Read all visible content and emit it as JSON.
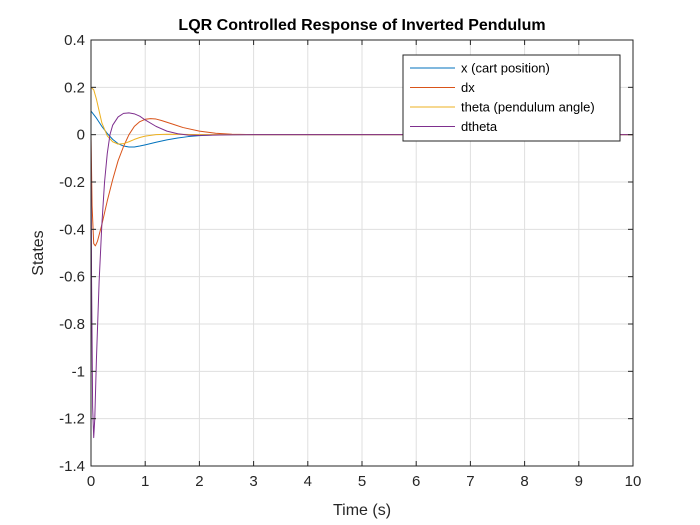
{
  "chart_data": {
    "type": "line",
    "title": "LQR Controlled Response of Inverted Pendulum",
    "xlabel": "Time (s)",
    "ylabel": "States",
    "xlim": [
      0,
      10
    ],
    "ylim": [
      -1.4,
      0.4
    ],
    "xticks": [
      0,
      1,
      2,
      3,
      4,
      5,
      6,
      7,
      8,
      9,
      10
    ],
    "yticks": [
      0.4,
      0.2,
      0,
      -0.2,
      -0.4,
      -0.6,
      -0.8,
      -1,
      -1.2,
      -1.4
    ],
    "grid": true,
    "legend_position": "top-right",
    "series": [
      {
        "name": "x (cart position)",
        "color": "#0072BD",
        "x": [
          0,
          0.05,
          0.1,
          0.2,
          0.3,
          0.4,
          0.5,
          0.6,
          0.7,
          0.8,
          0.9,
          1.0,
          1.2,
          1.4,
          1.6,
          1.8,
          2.0,
          2.3,
          2.6,
          3.0,
          4.0,
          10.0
        ],
        "y": [
          0.1,
          0.085,
          0.07,
          0.035,
          0.005,
          -0.02,
          -0.038,
          -0.048,
          -0.052,
          -0.052,
          -0.048,
          -0.043,
          -0.032,
          -0.022,
          -0.014,
          -0.008,
          -0.004,
          -0.001,
          0,
          0,
          0,
          0
        ]
      },
      {
        "name": "dx",
        "color": "#D95319",
        "x": [
          0,
          0.02,
          0.05,
          0.08,
          0.12,
          0.2,
          0.3,
          0.4,
          0.5,
          0.6,
          0.7,
          0.8,
          0.9,
          1.0,
          1.1,
          1.2,
          1.3,
          1.5,
          1.7,
          2.0,
          2.3,
          2.6,
          3.0,
          4.0,
          10.0
        ],
        "y": [
          0,
          -0.3,
          -0.46,
          -0.47,
          -0.45,
          -0.38,
          -0.28,
          -0.19,
          -0.11,
          -0.05,
          0.0,
          0.035,
          0.055,
          0.065,
          0.068,
          0.066,
          0.06,
          0.045,
          0.03,
          0.015,
          0.006,
          0.002,
          0,
          0,
          0
        ]
      },
      {
        "name": "theta (pendulum angle)",
        "color": "#EDB120",
        "x": [
          0,
          0.05,
          0.1,
          0.15,
          0.2,
          0.3,
          0.4,
          0.5,
          0.6,
          0.7,
          0.8,
          0.9,
          1.0,
          1.2,
          1.4,
          1.7,
          2.0,
          3.0,
          10.0
        ],
        "y": [
          0.2,
          0.19,
          0.15,
          0.1,
          0.05,
          -0.005,
          -0.03,
          -0.04,
          -0.038,
          -0.03,
          -0.02,
          -0.012,
          -0.006,
          0.0,
          0.002,
          0.001,
          0,
          0,
          0
        ]
      },
      {
        "name": "dtheta",
        "color": "#7E2F8E",
        "x": [
          0,
          0.01,
          0.03,
          0.05,
          0.07,
          0.1,
          0.15,
          0.2,
          0.25,
          0.3,
          0.35,
          0.4,
          0.5,
          0.6,
          0.7,
          0.8,
          0.9,
          1.0,
          1.2,
          1.4,
          1.6,
          1.8,
          2.0,
          2.5,
          3.0,
          10.0
        ],
        "y": [
          0,
          -0.6,
          -1.15,
          -1.28,
          -1.2,
          -0.95,
          -0.62,
          -0.38,
          -0.2,
          -0.08,
          0.0,
          0.04,
          0.075,
          0.09,
          0.092,
          0.088,
          0.078,
          0.062,
          0.035,
          0.015,
          0.004,
          -0.002,
          -0.003,
          -0.001,
          0,
          0
        ]
      }
    ]
  }
}
